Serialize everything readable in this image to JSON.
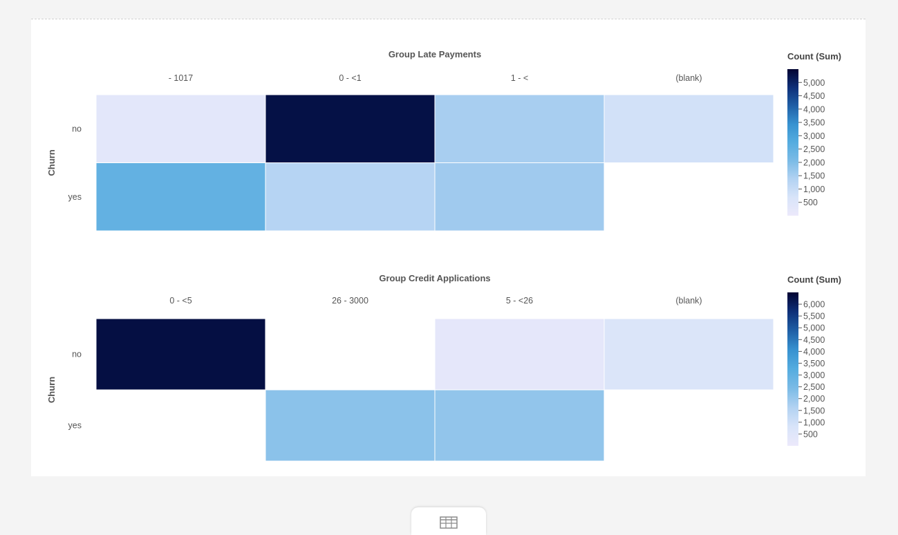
{
  "chart_data": [
    {
      "type": "heatmap",
      "title": "Group Late Payments",
      "ylabel": "Churn",
      "categories": [
        "- 1017",
        "0 - <1",
        "1 - <",
        "(blank)"
      ],
      "rows": [
        "no",
        "yes"
      ],
      "values": [
        [
          300,
          5300,
          1500,
          800
        ],
        [
          2500,
          1300,
          1600,
          null
        ]
      ],
      "legend": {
        "title": "Count (Sum)",
        "min": 0,
        "max": 5500,
        "ticks": [
          5000,
          4500,
          4000,
          3500,
          3000,
          2500,
          2000,
          1500,
          1000,
          500
        ],
        "tick_labels": [
          "5,000",
          "4,500",
          "4,000",
          "3,500",
          "3,000",
          "2,500",
          "2,000",
          "1,500",
          "1,000",
          "500"
        ],
        "placement": "right"
      }
    },
    {
      "type": "heatmap",
      "title": "Group Credit Applications",
      "ylabel": "Churn",
      "categories": [
        "0 - <5",
        "26 - 3000",
        "5 - <26",
        "(blank)"
      ],
      "rows": [
        "no",
        "yes"
      ],
      "values": [
        [
          6300,
          null,
          300,
          700
        ],
        [
          null,
          2200,
          2100,
          null
        ]
      ],
      "legend": {
        "title": "Count (Sum)",
        "min": 0,
        "max": 6500,
        "ticks": [
          6000,
          5500,
          5000,
          4500,
          4000,
          3500,
          3000,
          2500,
          2000,
          1500,
          1000,
          500
        ],
        "tick_labels": [
          "6,000",
          "5,500",
          "5,000",
          "4,500",
          "4,000",
          "3,500",
          "3,000",
          "2,500",
          "2,000",
          "1,500",
          "1,000",
          "500"
        ],
        "placement": "right"
      }
    }
  ],
  "colors": {
    "scale": [
      "#ece9fb",
      "#d8e4f9",
      "#b2d2f2",
      "#7bbbe6",
      "#55acdf",
      "#3792d0",
      "#1f5fa6",
      "#0e2f78",
      "#020432"
    ],
    "background": "#f4f4f4",
    "card": "#ffffff",
    "text": "#555555"
  },
  "footer": {
    "icon": "table-icon"
  }
}
